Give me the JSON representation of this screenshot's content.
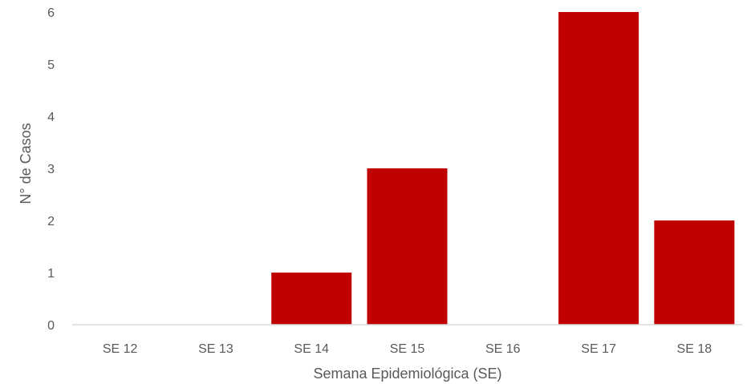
{
  "chart_data": {
    "type": "bar",
    "categories": [
      "SE 12",
      "SE 13",
      "SE 14",
      "SE 15",
      "SE 16",
      "SE 17",
      "SE 18"
    ],
    "values": [
      0,
      0,
      1,
      3,
      0,
      6,
      2
    ],
    "title": "",
    "xlabel": "Semana Epidemiológica (SE)",
    "ylabel": "N° de Casos",
    "ylim": [
      0,
      6
    ],
    "yticks": [
      0,
      1,
      2,
      3,
      4,
      5,
      6
    ],
    "grid": false,
    "legend": "none",
    "bar_color": "#C00000",
    "axis_color": "#D9D9D9",
    "text_color": "#595959"
  }
}
